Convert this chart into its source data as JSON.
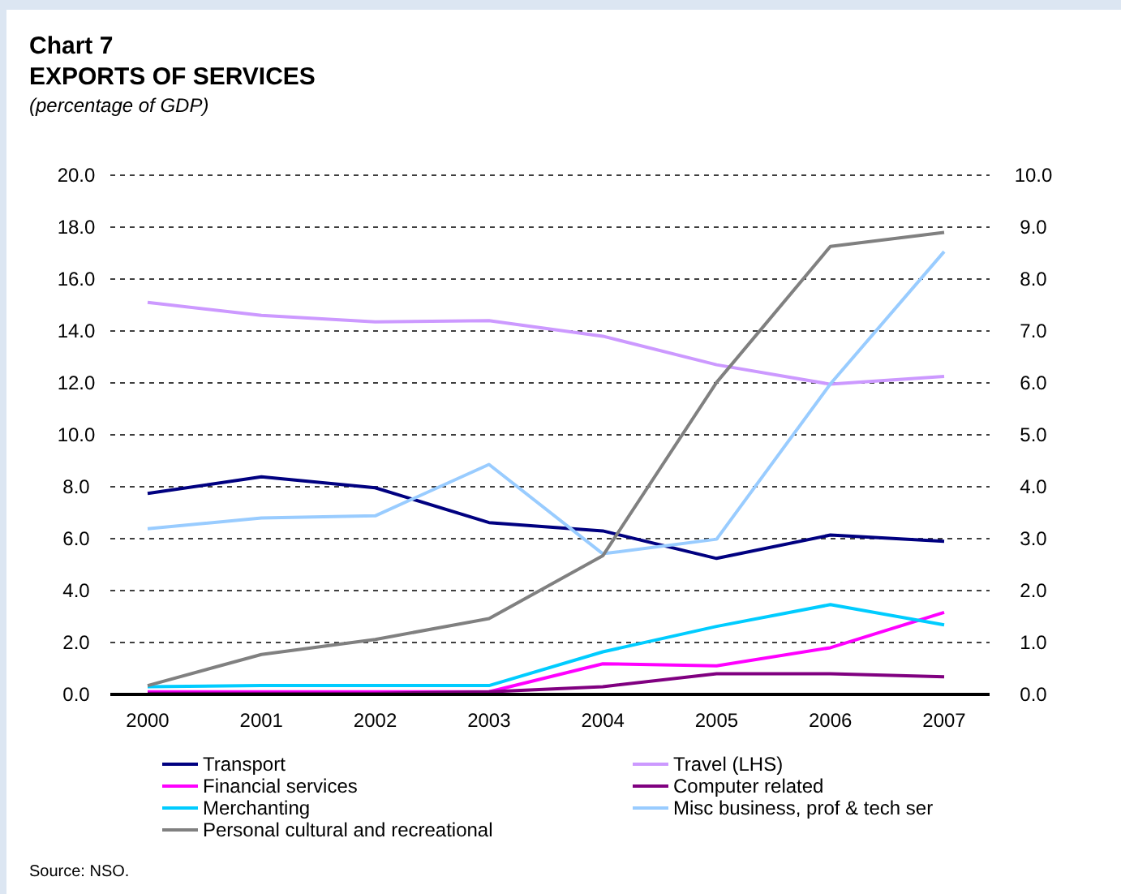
{
  "chart_data": {
    "type": "line",
    "title": "Chart 7",
    "subtitle": "EXPORTS OF SERVICES",
    "ylabel": "(percentage of GDP)",
    "categories": [
      "2000",
      "2001",
      "2002",
      "2003",
      "2004",
      "2005",
      "2006",
      "2007"
    ],
    "ylim": [
      0,
      20
    ],
    "yticks": [
      {
        "value": 0,
        "label": "0.0"
      },
      {
        "value": 2,
        "label": "2.0"
      },
      {
        "value": 4,
        "label": "4.0"
      },
      {
        "value": 6,
        "label": "6.0"
      },
      {
        "value": 8,
        "label": "8.0"
      },
      {
        "value": 10,
        "label": "10.0"
      },
      {
        "value": 12,
        "label": "12.0"
      },
      {
        "value": 14,
        "label": "14.0"
      },
      {
        "value": 16,
        "label": "16.0"
      },
      {
        "value": 18,
        "label": "18.0"
      },
      {
        "value": 20,
        "label": "20.0"
      }
    ],
    "y2lim": [
      0,
      10
    ],
    "y2ticks": [
      {
        "value": 0,
        "label": "0.0"
      },
      {
        "value": 1,
        "label": "1.0"
      },
      {
        "value": 2,
        "label": "2.0"
      },
      {
        "value": 3,
        "label": "3.0"
      },
      {
        "value": 4,
        "label": "4.0"
      },
      {
        "value": 5,
        "label": "5.0"
      },
      {
        "value": 6,
        "label": "6.0"
      },
      {
        "value": 7,
        "label": "7.0"
      },
      {
        "value": 8,
        "label": "8.0"
      },
      {
        "value": 9,
        "label": "9.0"
      },
      {
        "value": 10,
        "label": "10.0"
      }
    ],
    "grid": "y",
    "legend": "bottom",
    "line_style": "solid",
    "series": [
      {
        "name": "Transport",
        "color": "#000080",
        "axis": "y2",
        "values": [
          3.87,
          4.19,
          3.98,
          3.31,
          3.15,
          2.62,
          3.07,
          2.95
        ]
      },
      {
        "name": "Travel (LHS)",
        "color": "#cc99ff",
        "axis": "y",
        "values": [
          15.1,
          14.6,
          14.35,
          14.4,
          13.8,
          12.7,
          11.95,
          12.25
        ]
      },
      {
        "name": "Financial services",
        "color": "#ff00ff",
        "axis": "y2",
        "values": [
          0.05,
          0.05,
          0.05,
          0.05,
          0.59,
          0.55,
          0.9,
          1.58
        ]
      },
      {
        "name": "Computer related",
        "color": "#800080",
        "axis": "y2",
        "values": [
          0.02,
          0.02,
          0.02,
          0.05,
          0.15,
          0.4,
          0.4,
          0.34
        ]
      },
      {
        "name": "Merchanting",
        "color": "#00ccff",
        "axis": "y2",
        "values": [
          0.15,
          0.17,
          0.17,
          0.17,
          0.82,
          1.31,
          1.73,
          1.34
        ]
      },
      {
        "name": "Misc business, prof & tech ser",
        "color": "#99ccff",
        "axis": "y2",
        "values": [
          3.19,
          3.4,
          3.44,
          4.43,
          2.71,
          2.99,
          5.98,
          8.53
        ]
      },
      {
        "name": "Personal cultural and recreational",
        "color": "#808080",
        "axis": "y2",
        "values": [
          0.17,
          0.77,
          1.06,
          1.46,
          2.67,
          6.01,
          8.63,
          8.9
        ]
      }
    ],
    "annotations": [
      "Source: NSO."
    ]
  }
}
